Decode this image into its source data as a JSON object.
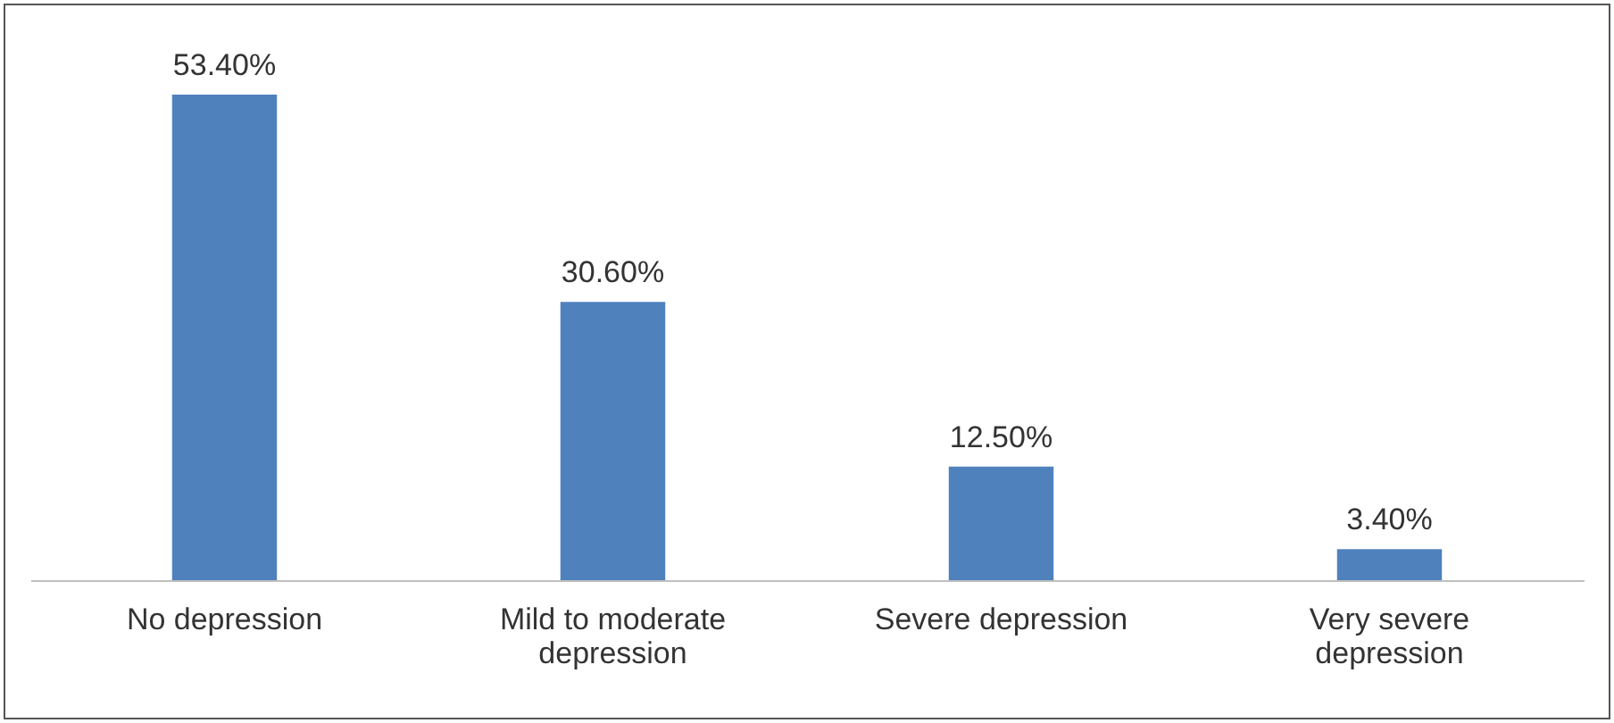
{
  "chart_data": {
    "type": "bar",
    "categories": [
      "No depression",
      "Mild to moderate depression",
      "Severe depression",
      "Very severe depression"
    ],
    "values": [
      53.4,
      30.6,
      12.5,
      3.4
    ],
    "value_labels": [
      "53.40%",
      "30.60%",
      "12.50%",
      "3.40%"
    ],
    "color": "#4f81bd"
  }
}
